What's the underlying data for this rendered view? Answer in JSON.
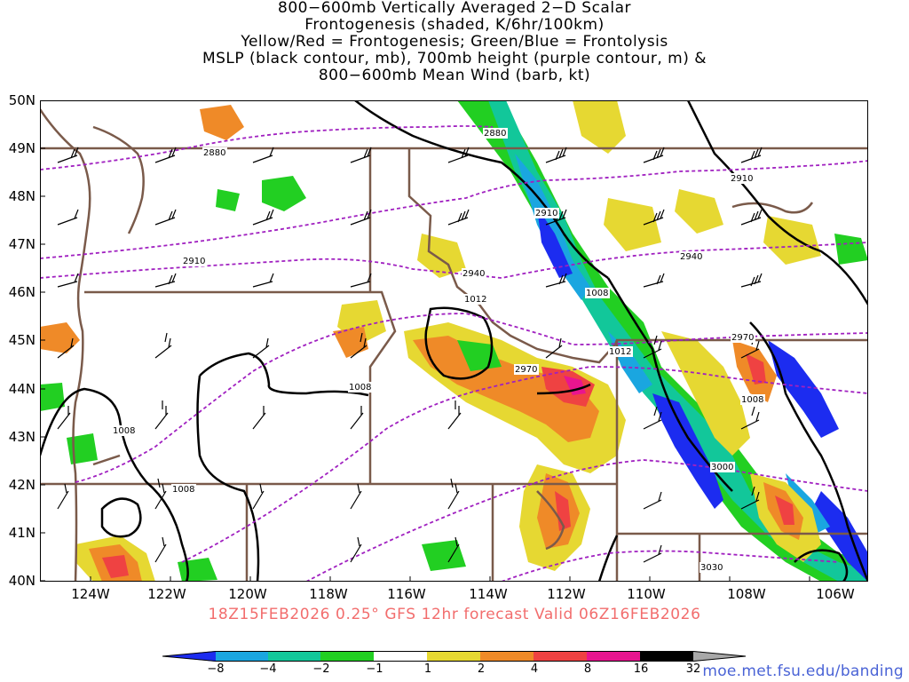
{
  "title": {
    "line1": "800−600mb Vertically Averaged 2−D Scalar",
    "line2": "Frontogenesis (shaded, K/6hr/100km)",
    "line3": "Yellow/Red = Frontogenesis;  Green/Blue = Frontolysis",
    "line4": "MSLP (black contour, mb), 700mb height (purple contour, m) &",
    "line5": "800−600mb Mean Wind (barb, kt)"
  },
  "axes": {
    "latitudes": [
      "50N",
      "49N",
      "48N",
      "47N",
      "46N",
      "45N",
      "44N",
      "43N",
      "42N",
      "41N",
      "40N"
    ],
    "longitudes": [
      "124W",
      "122W",
      "120W",
      "118W",
      "116W",
      "114W",
      "112W",
      "110W",
      "108W",
      "106W"
    ]
  },
  "caption": "18Z15FEB2026 0.25° GFS 12hr forecast Valid 06Z16FEB2026",
  "colorbar": {
    "labels": [
      "−8",
      "−4",
      "−2",
      "−1",
      "1",
      "2",
      "4",
      "8",
      "16",
      "32"
    ],
    "colors": [
      "#1c2cf0",
      "#1aa6e0",
      "#12c79a",
      "#22cf22",
      "#ffffff",
      "#e6d832",
      "#ef8a28",
      "#ef4242",
      "#e8158f",
      "#000000",
      "#a8a8a8"
    ]
  },
  "credit": "moe.met.fsu.edu/banding",
  "contour_labels": {
    "mslp": [
      "1008",
      "1008",
      "1008",
      "1012",
      "1008",
      "1012",
      "1008"
    ],
    "height": [
      "2880",
      "2880",
      "2910",
      "2910",
      "2910",
      "2940",
      "2940",
      "2970",
      "2970",
      "3000",
      "3030"
    ]
  },
  "map_colors": {
    "border": "#7a5a4a",
    "mslp": "#000000",
    "height": "#a020c0"
  }
}
